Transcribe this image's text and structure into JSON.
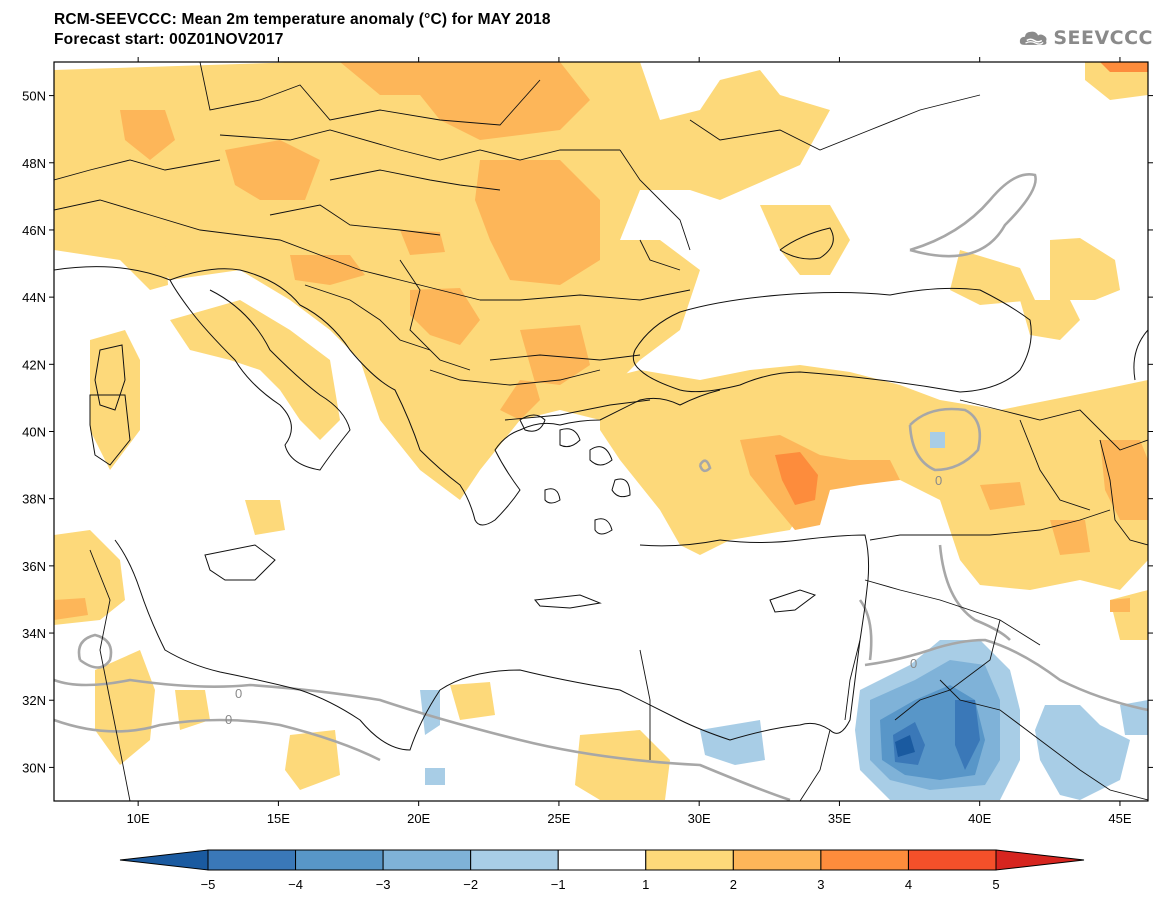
{
  "header": {
    "title_line1": "RCM-SEEVCCC: Mean 2m temperature anomaly (°C) for MAY 2018",
    "title_line2": "Forecast start: 00Z01NOV2017"
  },
  "logo": {
    "text": "SEEVCCC",
    "icon": "cloud-icon",
    "color": "#8a8a8a"
  },
  "map": {
    "lon_range": [
      7,
      46
    ],
    "lat_range": [
      29,
      51
    ],
    "lat_labels": [
      "30N",
      "32N",
      "34N",
      "36N",
      "38N",
      "40N",
      "42N",
      "44N",
      "46N",
      "48N",
      "50N"
    ],
    "lat_values": [
      30,
      32,
      34,
      36,
      38,
      40,
      42,
      44,
      46,
      48,
      50
    ],
    "lon_labels": [
      "10E",
      "15E",
      "20E",
      "25E",
      "30E",
      "35E",
      "40E",
      "45E"
    ],
    "lon_values": [
      10,
      15,
      20,
      25,
      30,
      35,
      40,
      45
    ],
    "contour_label": "0"
  },
  "colorbar": {
    "labels": [
      "−5",
      "−4",
      "−3",
      "−2",
      "−1",
      "1",
      "2",
      "3",
      "4",
      "5"
    ],
    "colors": [
      "#1a5aa0",
      "#3a78b8",
      "#5896c8",
      "#7fb2d8",
      "#a8cde6",
      "#ffffff",
      "#fdd97a",
      "#fdb659",
      "#fd8c3c",
      "#f4502a",
      "#d6251f"
    ]
  }
}
